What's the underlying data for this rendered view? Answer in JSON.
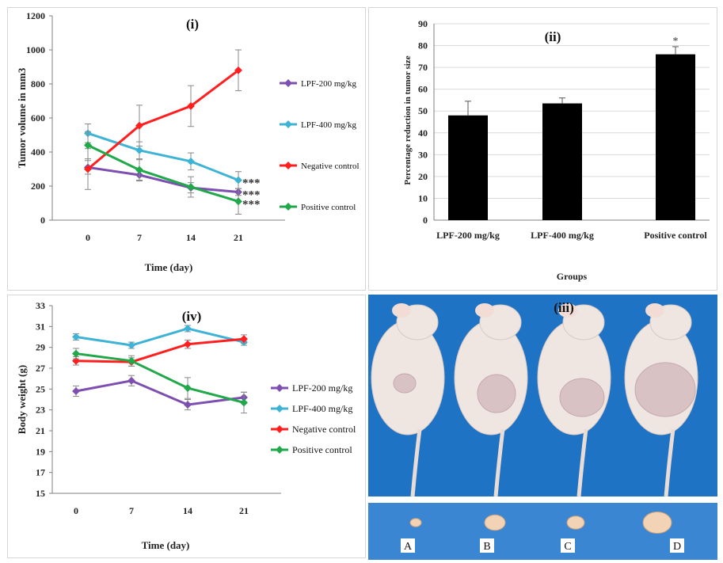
{
  "chart_data": [
    {
      "panel_label": "(i)",
      "type": "line",
      "xlabel": "Time (day)",
      "ylabel": "Tumor volume in mm3",
      "categories": [
        "0",
        "7",
        "14",
        "21"
      ],
      "ylim": [
        0,
        1200
      ],
      "yticks": [
        "0",
        "200",
        "400",
        "600",
        "800",
        "1000",
        "1200"
      ],
      "series": [
        {
          "name": "LPF-200 mg/kg",
          "color": "#7d4fb0",
          "values": [
            310,
            265,
            190,
            165
          ],
          "errors": [
            40,
            35,
            30,
            20
          ]
        },
        {
          "name": "LPF-400 mg/kg",
          "color": "#3fb3d6",
          "values": [
            510,
            410,
            345,
            235
          ],
          "errors": [
            55,
            50,
            50,
            50
          ]
        },
        {
          "name": "Negative control",
          "color": "#ff1f1f",
          "values": [
            300,
            555,
            670,
            880
          ],
          "errors": [
            120,
            120,
            120,
            120
          ]
        },
        {
          "name": "Positive control",
          "color": "#21a84a",
          "values": [
            440,
            295,
            195,
            110
          ],
          "errors": [
            80,
            60,
            60,
            75
          ]
        }
      ],
      "annotations": [
        "***",
        "***",
        "***"
      ],
      "grid": false,
      "legend": "right"
    },
    {
      "panel_label": "(ii)",
      "type": "bar",
      "xlabel": "Groups",
      "ylabel": "Percentage reduction in tumor size",
      "categories": [
        "LPF-200 mg/kg",
        "LPF-400 mg/kg",
        "Positive control"
      ],
      "values": [
        48,
        53.5,
        76
      ],
      "errors": [
        6.5,
        2.5,
        3.5
      ],
      "ylim": [
        0,
        90
      ],
      "yticks": [
        "0",
        "10",
        "20",
        "30",
        "40",
        "50",
        "60",
        "70",
        "80",
        "90"
      ],
      "annotations": [
        "*"
      ],
      "bar_color": "#000000",
      "grid": true
    },
    {
      "panel_label": "(iv)",
      "type": "line",
      "xlabel": "Time (day)",
      "ylabel": "Body weight (g)",
      "categories": [
        "0",
        "7",
        "14",
        "21"
      ],
      "ylim": [
        15,
        33
      ],
      "yticks": [
        "15",
        "17",
        "19",
        "21",
        "23",
        "25",
        "27",
        "29",
        "31",
        "33"
      ],
      "series": [
        {
          "name": "LPF-200 mg/kg",
          "color": "#7d4fb0",
          "values": [
            24.8,
            25.8,
            23.5,
            24.2
          ],
          "errors": [
            0.5,
            0.5,
            0.5,
            0.5
          ]
        },
        {
          "name": "LPF-400 mg/kg",
          "color": "#3fb3d6",
          "values": [
            30.0,
            29.2,
            30.8,
            29.5
          ],
          "errors": [
            0.3,
            0.3,
            0.3,
            0.3
          ]
        },
        {
          "name": "Negative control",
          "color": "#ff1f1f",
          "values": [
            27.7,
            27.6,
            29.3,
            29.8
          ],
          "errors": [
            0.4,
            0.4,
            0.4,
            0.4
          ]
        },
        {
          "name": "Positive control",
          "color": "#21a84a",
          "values": [
            28.4,
            27.7,
            25.1,
            23.7
          ],
          "errors": [
            0.5,
            0.5,
            1.0,
            1.0
          ]
        }
      ],
      "grid": false,
      "legend": "right"
    }
  ],
  "photo": {
    "panel_label": "(iii)",
    "tumor_labels": [
      "A",
      "B",
      "C",
      "D"
    ],
    "background_color": "#1f73c4",
    "dish_color": "#3a86d3"
  }
}
